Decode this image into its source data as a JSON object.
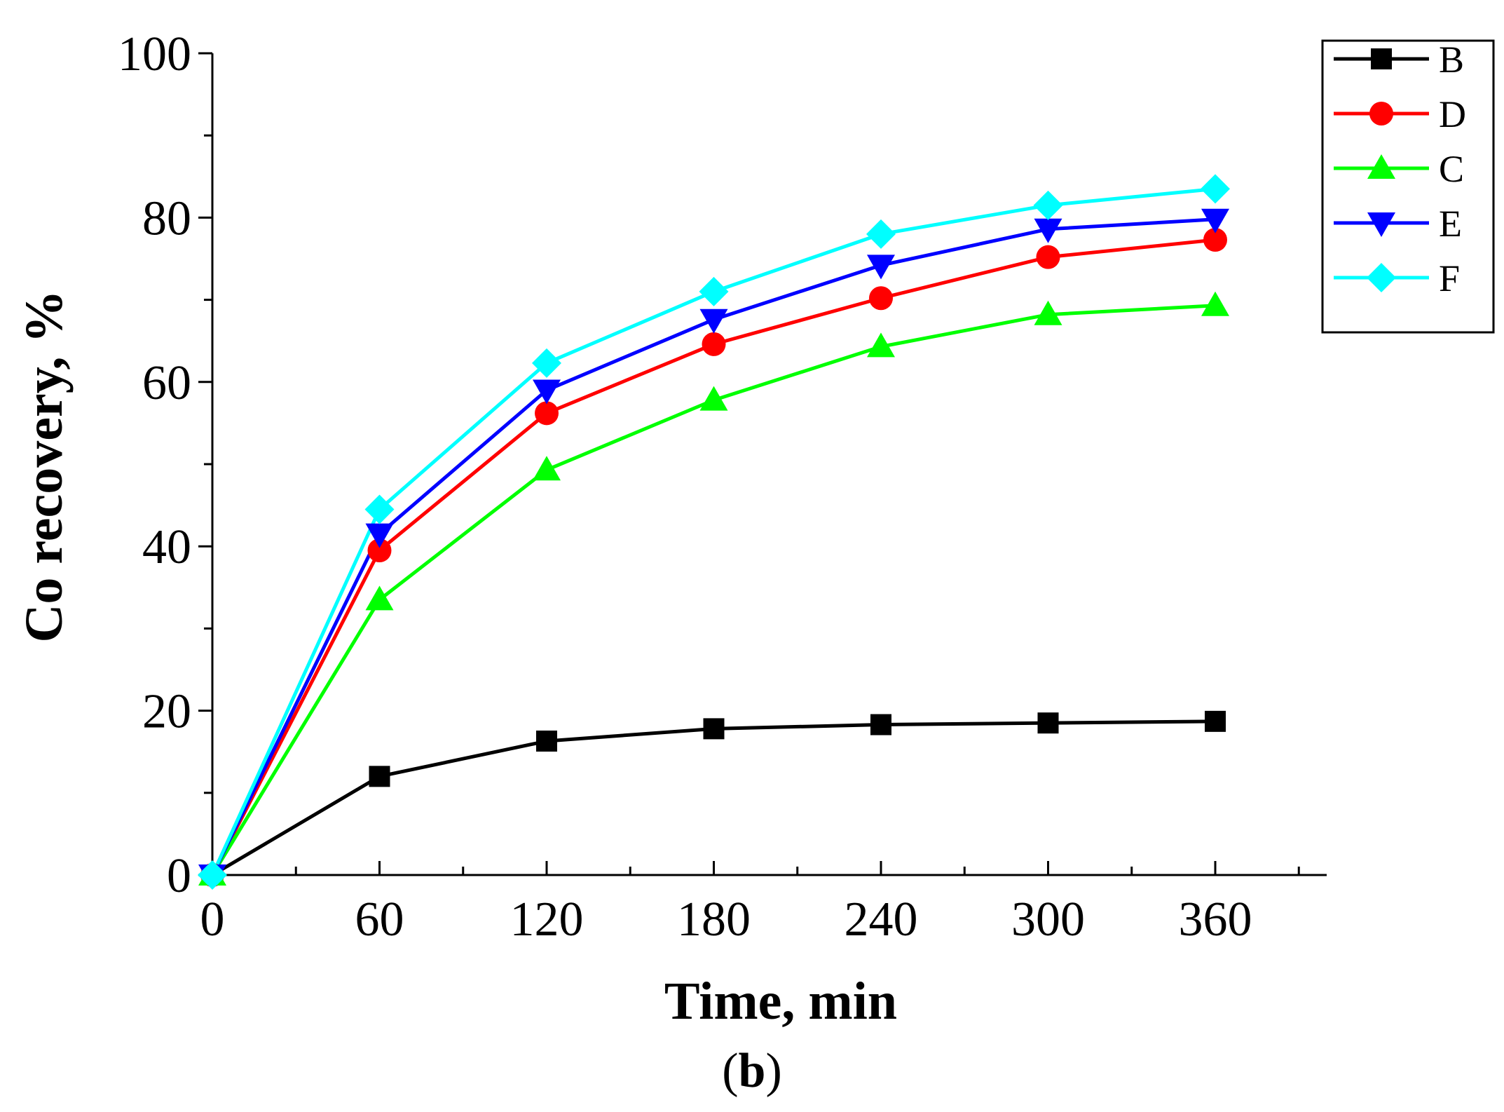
{
  "chart_data": {
    "type": "line",
    "title": "",
    "xlabel": "Time, min",
    "ylabel": "Co recovery, %",
    "caption_open": "(",
    "caption_letter": "b",
    "caption_close": ")",
    "xlim": [
      0,
      400
    ],
    "ylim": [
      0,
      100
    ],
    "x": [
      0,
      60,
      120,
      180,
      240,
      300,
      360
    ],
    "xticks": [
      0,
      60,
      120,
      180,
      240,
      300,
      360
    ],
    "yticks": [
      0,
      20,
      40,
      60,
      80,
      100
    ],
    "x_minor_step": 30,
    "y_minor_step": 10,
    "grid": false,
    "legend_position": "top-right",
    "series": [
      {
        "name": "B",
        "color": "#000000",
        "marker": "square",
        "values": [
          0,
          12,
          16.3,
          17.8,
          18.3,
          18.5,
          18.7
        ]
      },
      {
        "name": "D",
        "color": "#ff0000",
        "marker": "circle",
        "values": [
          0,
          39.5,
          56.2,
          64.6,
          70.2,
          75.2,
          77.3
        ]
      },
      {
        "name": "C",
        "color": "#00ff00",
        "marker": "triangle-up",
        "values": [
          0,
          33.5,
          49.3,
          57.8,
          64.3,
          68.2,
          69.3
        ]
      },
      {
        "name": "E",
        "color": "#0000ff",
        "marker": "triangle-down",
        "values": [
          0,
          41.5,
          59,
          67.6,
          74.2,
          78.6,
          79.8
        ]
      },
      {
        "name": "F",
        "color": "#00ffff",
        "marker": "diamond",
        "values": [
          0,
          44.5,
          62.3,
          71,
          78,
          81.5,
          83.5
        ]
      }
    ]
  }
}
